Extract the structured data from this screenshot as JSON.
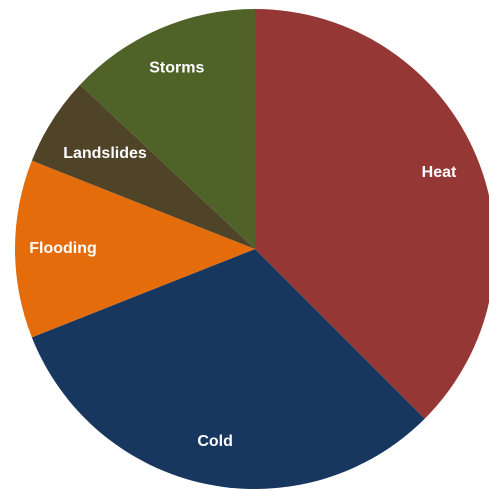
{
  "chart_data": {
    "type": "pie",
    "title": "",
    "slices": [
      {
        "label": "Heat",
        "value": 37.5,
        "color": "#953735"
      },
      {
        "label": "Cold",
        "value": 31.5,
        "color": "#17375E"
      },
      {
        "label": "Flooding",
        "value": 12.0,
        "color": "#E46C0A"
      },
      {
        "label": "Landslides",
        "value": 6.0,
        "color": "#4F4328"
      },
      {
        "label": "Storms",
        "value": 13.0,
        "color": "#4F6228"
      }
    ],
    "start_angle_deg": 0,
    "direction": "clockwise",
    "legend": "none",
    "labels_inside": true
  }
}
